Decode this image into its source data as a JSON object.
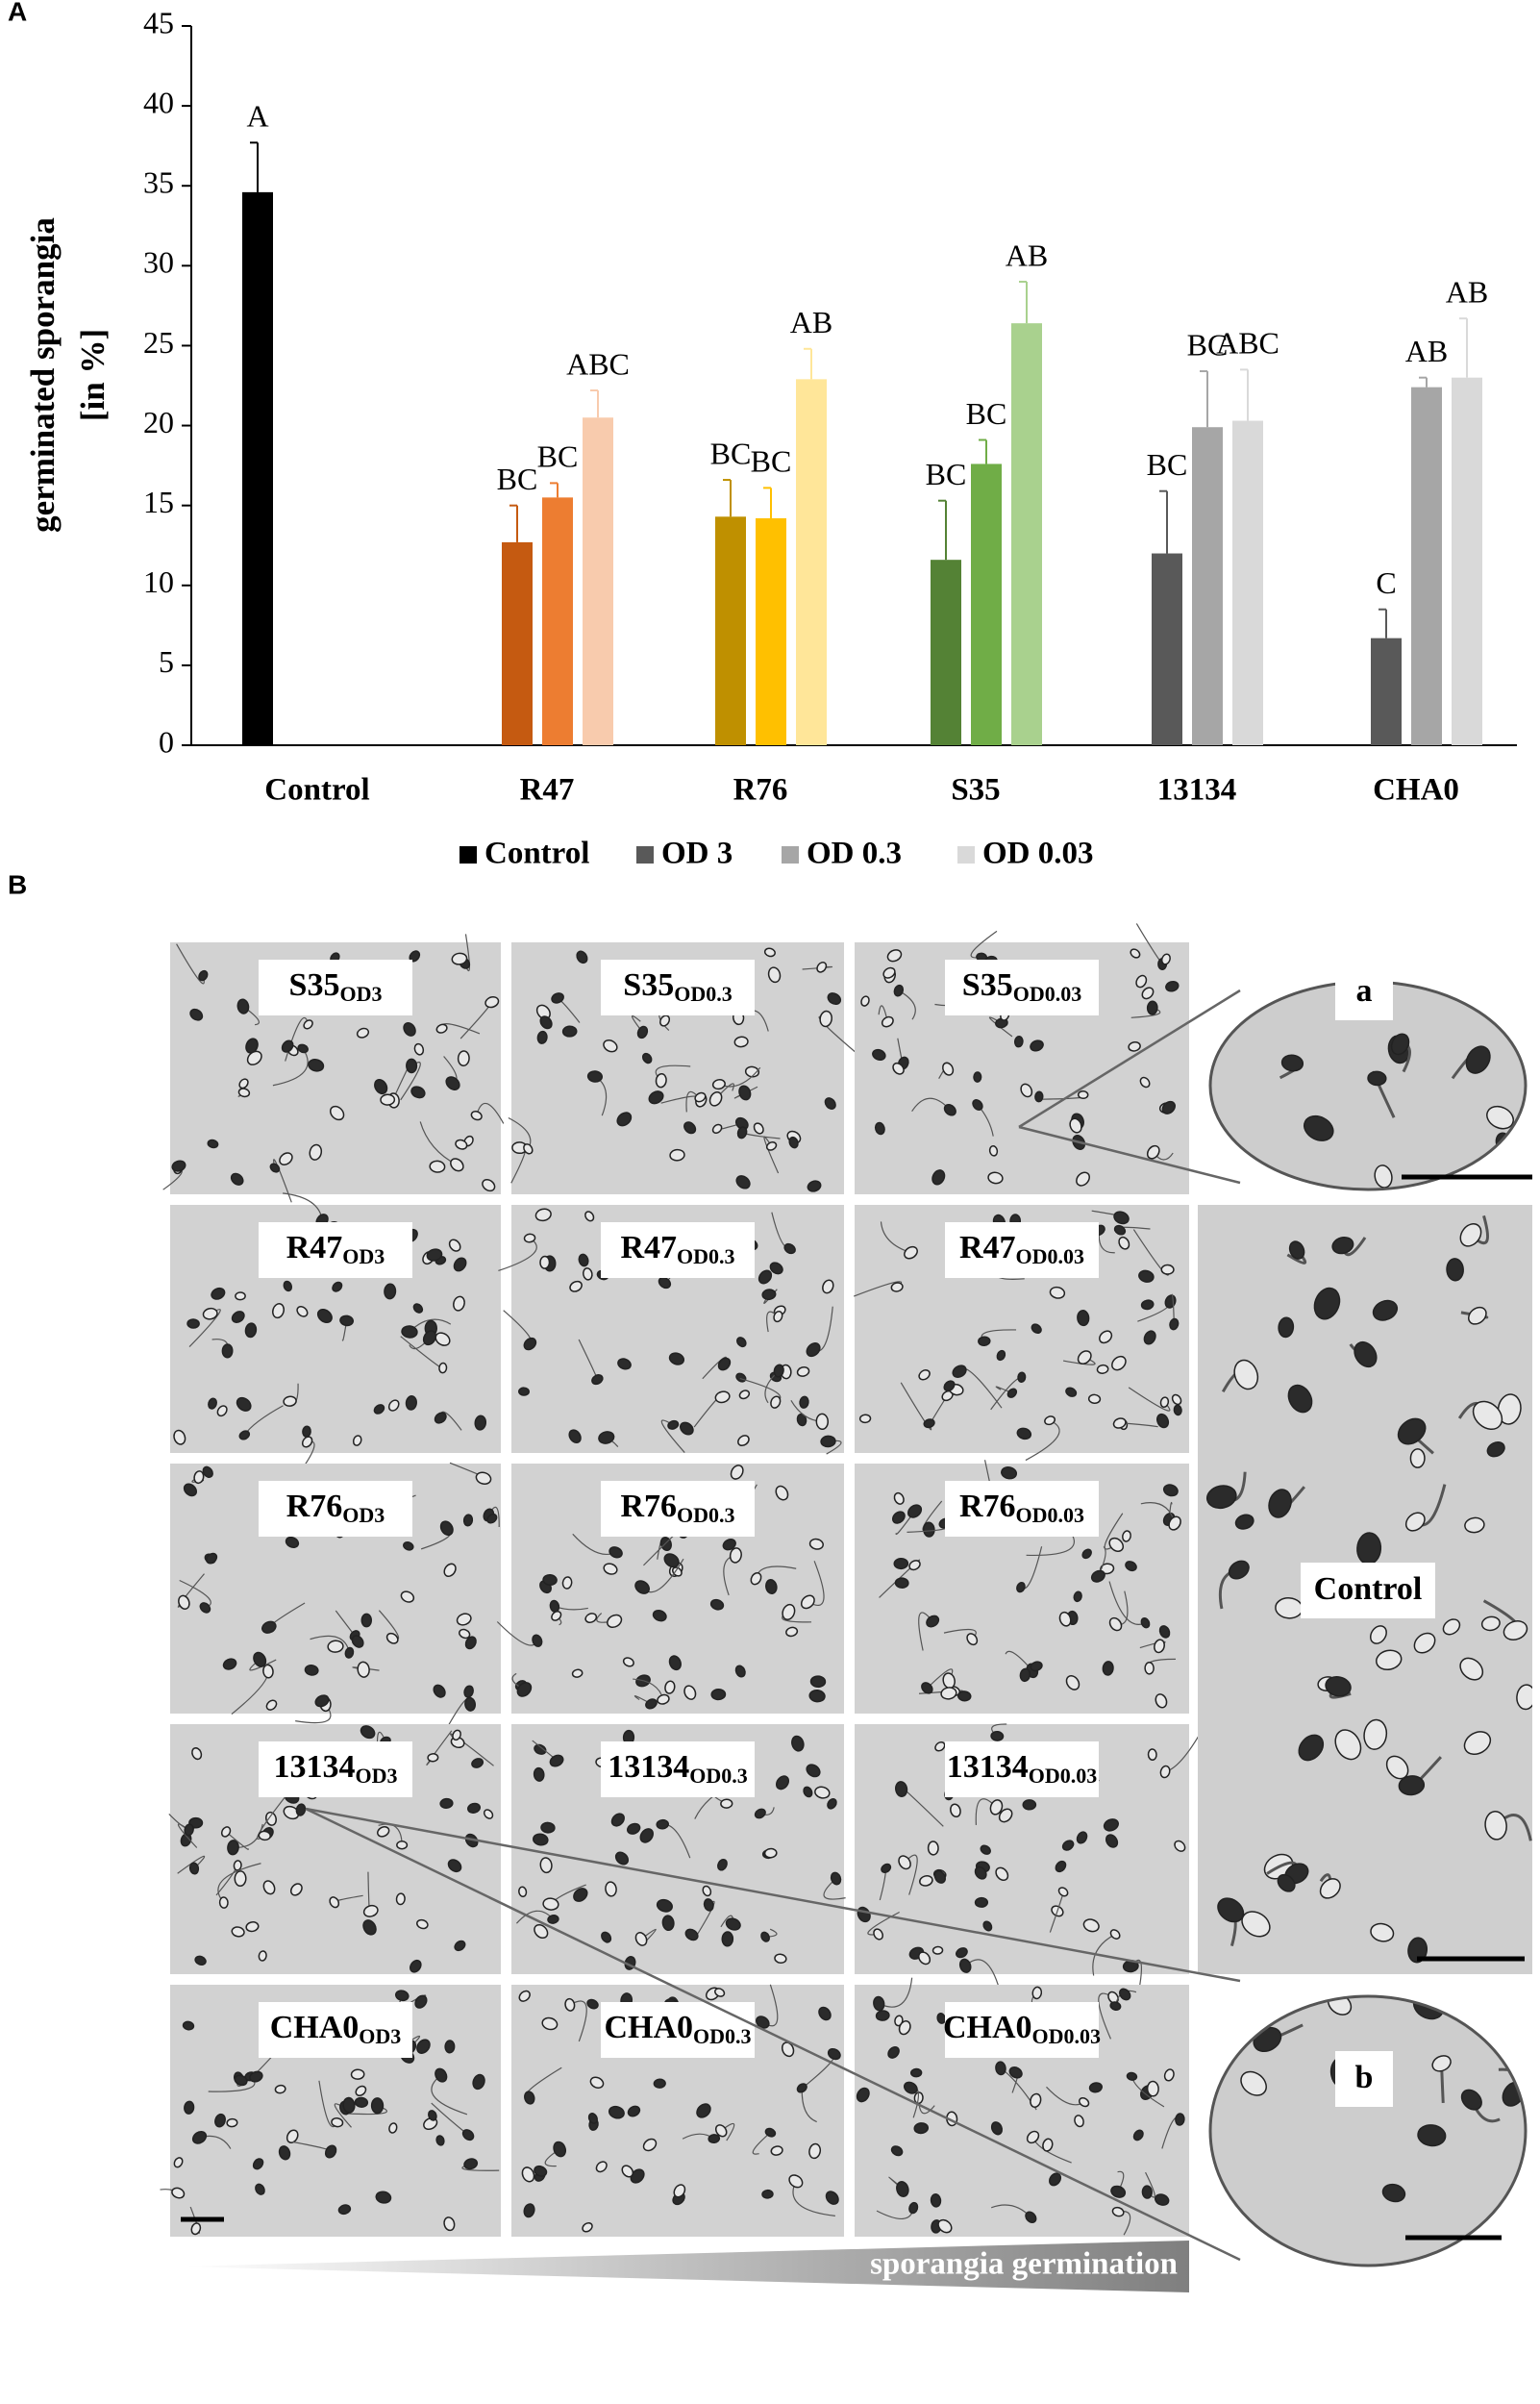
{
  "chart_data": {
    "type": "bar",
    "panel_label": "A",
    "y_label": [
      "germinated sporangia",
      "[in %]"
    ],
    "categories": [
      "Control",
      "R47",
      "R76",
      "S35",
      "13134",
      "CHA0"
    ],
    "series": [
      {
        "name": "Control",
        "color": "#000000",
        "bar_colors": [
          "#000000",
          null,
          null,
          null,
          null,
          null
        ],
        "values": [
          34.6,
          null,
          null,
          null,
          null,
          null
        ],
        "errors": [
          3.1,
          null,
          null,
          null,
          null,
          null
        ],
        "letters": [
          "A",
          null,
          null,
          null,
          null,
          null
        ]
      },
      {
        "name": "OD 3",
        "color": "#595959",
        "bar_colors": [
          null,
          "#c55a11",
          "#bf9000",
          "#548235",
          "#595959",
          "#595959"
        ],
        "values": [
          null,
          12.7,
          14.3,
          11.6,
          12.0,
          6.7
        ],
        "errors": [
          null,
          2.3,
          2.3,
          3.7,
          3.9,
          1.8
        ],
        "letters": [
          null,
          "BC",
          "BC",
          "BC",
          "BC",
          "C"
        ]
      },
      {
        "name": "OD 0.3",
        "color": "#a6a6a6",
        "bar_colors": [
          null,
          "#ed7d31",
          "#ffc000",
          "#70ad47",
          "#a6a6a6",
          "#a6a6a6"
        ],
        "values": [
          null,
          15.5,
          14.2,
          17.6,
          19.9,
          22.4
        ],
        "errors": [
          null,
          0.9,
          1.9,
          1.5,
          3.5,
          0.6
        ],
        "letters": [
          null,
          "BC",
          "BC",
          "BC",
          "BC",
          "AB"
        ]
      },
      {
        "name": "OD 0.03",
        "color": "#d9d9d9",
        "bar_colors": [
          null,
          "#f8cbad",
          "#ffe699",
          "#a9d18e",
          "#d9d9d9",
          "#d9d9d9"
        ],
        "values": [
          null,
          20.5,
          22.9,
          26.4,
          20.3,
          23.0
        ],
        "errors": [
          null,
          1.7,
          1.9,
          2.6,
          3.2,
          3.7
        ],
        "letters": [
          null,
          "ABC",
          "AB",
          "AB",
          "ABC",
          "AB"
        ]
      }
    ],
    "ylim": [
      0,
      45
    ],
    "yticks": [
      0,
      5,
      10,
      15,
      20,
      25,
      30,
      35,
      40,
      45
    ],
    "grid": false,
    "legend": "bottom"
  },
  "micrographs": {
    "panel_label": "B",
    "strains": [
      "S35",
      "R47",
      "R76",
      "13134",
      "CHA0"
    ],
    "conditions": [
      "OD3",
      "OD0.3",
      "OD0.03"
    ],
    "inset_top": "a",
    "inset_bottom": "b",
    "control": "Control",
    "gradient_label": "sporangia germination"
  }
}
